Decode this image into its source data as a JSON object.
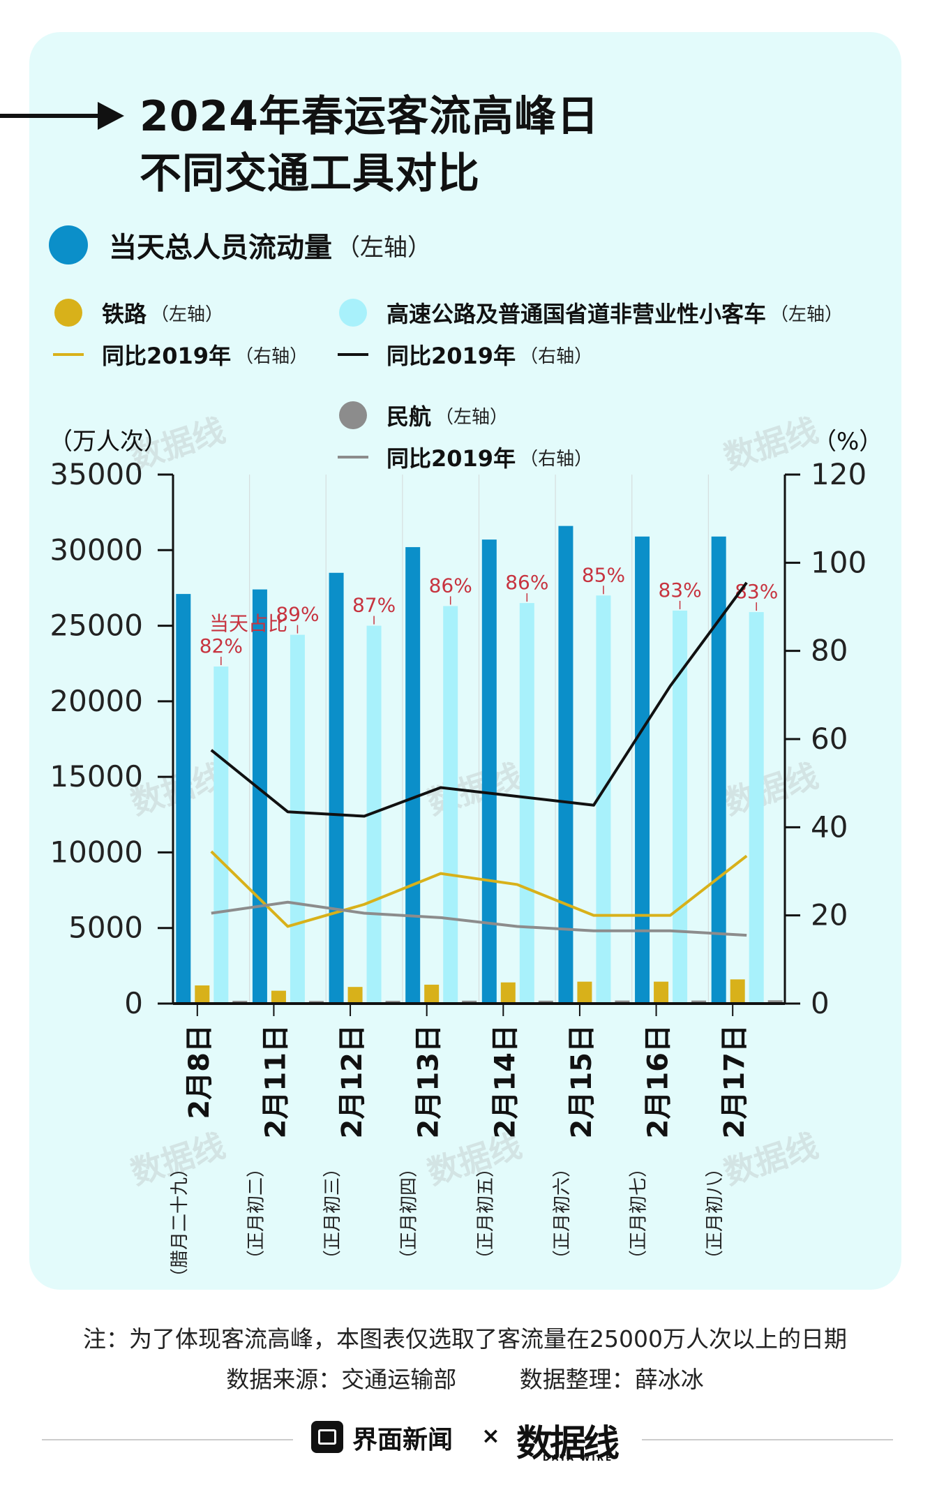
{
  "title_line1": "2024年春运客流高峰日",
  "title_line2": "不同交通工具对比",
  "legend": {
    "total": {
      "label": "当天总人员流动量",
      "axis": "（左轴）",
      "color": "#0b8fc9"
    },
    "rail": {
      "label": "铁路",
      "axis": "（左轴）",
      "color": "#d8b11a"
    },
    "rail_yoy": {
      "label": "同比2019年",
      "axis": "（右轴）",
      "color": "#d8b11a"
    },
    "road": {
      "label": "高速公路及普通国省道非营业性小客车",
      "axis": "（左轴）",
      "color": "#a8f1fb"
    },
    "road_yoy": {
      "label": "同比2019年",
      "axis": "（右轴）",
      "color": "#111111"
    },
    "air": {
      "label": "民航",
      "axis": "（左轴）",
      "color": "#8c8c8c"
    },
    "air_yoy": {
      "label": "同比2019年",
      "axis": "（右轴）",
      "color": "#8c8c8c"
    }
  },
  "unit_left": "（万人次）",
  "unit_right": "（%）",
  "share_note": "当天占比",
  "chart_data": {
    "type": "bar",
    "categories": [
      "2月8日",
      "2月11日",
      "2月12日",
      "2月13日",
      "2月14日",
      "2月15日",
      "2月16日",
      "2月17日"
    ],
    "category_sub": [
      "（腊月二十九）",
      "（正月初二）",
      "（正月初三）",
      "（正月初四）",
      "（正月初五）",
      "（正月初六）",
      "（正月初七）",
      "（正月初八）"
    ],
    "left_axis": {
      "ylim": [
        0,
        35000
      ],
      "ticks": [
        0,
        5000,
        10000,
        15000,
        20000,
        25000,
        30000,
        35000
      ]
    },
    "right_axis": {
      "ylim": [
        0,
        120
      ],
      "ticks": [
        0,
        20,
        40,
        60,
        80,
        100,
        120
      ]
    },
    "series": [
      {
        "name": "当天总人员流动量",
        "type": "bar",
        "axis": "left",
        "color": "#0b8fc9",
        "values": [
          27100,
          27400,
          28500,
          30200,
          30700,
          31600,
          30900,
          30900
        ]
      },
      {
        "name": "铁路",
        "type": "bar",
        "axis": "left",
        "color": "#d8b11a",
        "values": [
          1200,
          850,
          1100,
          1250,
          1400,
          1450,
          1450,
          1600
        ]
      },
      {
        "name": "高速公路及普通国省道非营业性小客车",
        "type": "bar",
        "axis": "left",
        "color": "#a8f1fb",
        "values": [
          22300,
          24400,
          25000,
          26300,
          26500,
          27000,
          26000,
          25900
        ],
        "share_labels": [
          "82%",
          "89%",
          "87%",
          "86%",
          "86%",
          "85%",
          "83%",
          "83%"
        ]
      },
      {
        "name": "民航",
        "type": "bar",
        "axis": "left",
        "color": "#8c8c8c",
        "values": [
          180,
          170,
          180,
          190,
          190,
          200,
          200,
          220
        ]
      },
      {
        "name": "同比2019年",
        "type": "line",
        "axis": "right",
        "color": "#d8b11a",
        "values": [
          34.5,
          17.5,
          22.5,
          29.5,
          27,
          20,
          20,
          33.5
        ]
      },
      {
        "name": "同比2019年",
        "type": "line",
        "axis": "right",
        "color": "#111111",
        "values": [
          57.5,
          43.5,
          42.5,
          49,
          47,
          45,
          72,
          95.5
        ]
      },
      {
        "name": "同比2019年",
        "type": "line",
        "axis": "right",
        "color": "#8c8c8c",
        "values": [
          20.5,
          23,
          20.5,
          19.5,
          17.5,
          16.5,
          16.5,
          15.5
        ]
      }
    ]
  },
  "footer": {
    "note": "注：为了体现客流高峰，本图表仅选取了客流量在25000万人次以上的日期",
    "source": "数据来源：交通运输部",
    "compiler": "数据整理：薛冰冰"
  },
  "brand": {
    "name": "界面新闻",
    "times": "×",
    "datawire": "数据线",
    "datawire_en": "DATA WIRE"
  },
  "watermark": "数据线"
}
